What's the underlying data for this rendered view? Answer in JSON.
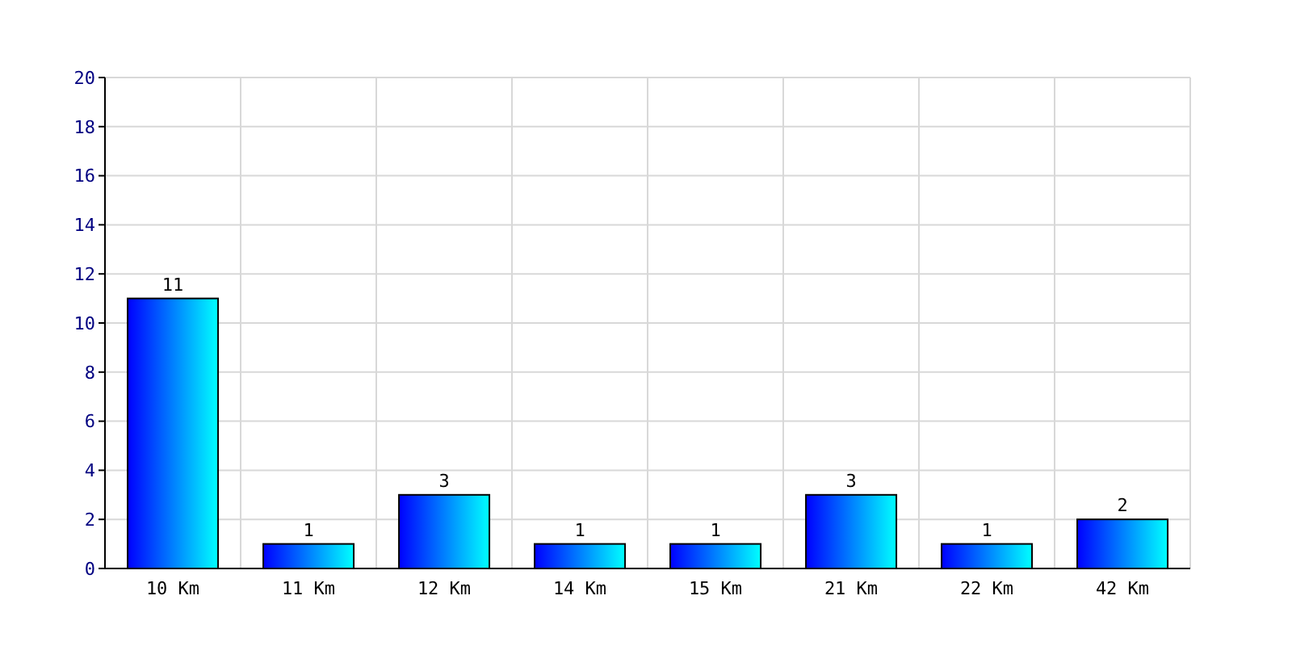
{
  "chart_data": {
    "type": "bar",
    "categories": [
      "10 Km",
      "11 Km",
      "12 Km",
      "14 Km",
      "15 Km",
      "21 Km",
      "22 Km",
      "42 Km"
    ],
    "values": [
      11,
      1,
      3,
      1,
      1,
      3,
      1,
      2
    ],
    "color": "#0000ff",
    "ylim": [
      0,
      20
    ],
    "yticks": [
      0,
      2,
      4,
      6,
      8,
      10,
      12,
      14,
      16,
      18,
      20
    ],
    "grid": true,
    "data_labels": true
  }
}
